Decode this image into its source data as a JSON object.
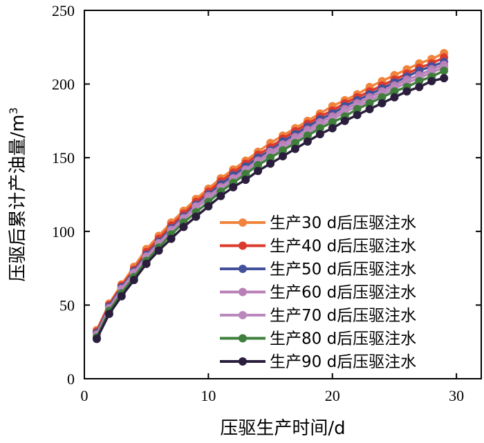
{
  "chart_data": {
    "type": "line",
    "xlabel": "压驱生产时间/d",
    "ylabel_main": "压驱后累计产油量/m",
    "ylabel_sup": "3",
    "xlim": [
      0,
      32
    ],
    "ylim": [
      0,
      250
    ],
    "xticks": [
      0,
      10,
      20,
      30
    ],
    "yticks": [
      0,
      50,
      100,
      150,
      200,
      250
    ],
    "grid": false,
    "legend_position": "lower-right",
    "marker": "circle",
    "x": [
      1,
      2,
      3,
      4,
      5,
      6,
      7,
      8,
      9,
      10,
      11,
      12,
      13,
      14,
      15,
      16,
      17,
      18,
      19,
      20,
      21,
      22,
      23,
      24,
      25,
      26,
      27,
      28,
      29
    ],
    "series": [
      {
        "name": "生产30 d后压驱注水",
        "color": "#f0843c",
        "values": [
          33,
          51,
          64,
          76,
          88,
          97,
          106,
          114,
          122,
          129,
          136,
          142,
          148,
          154,
          160,
          165,
          170,
          175,
          180,
          185,
          189,
          193,
          198,
          202,
          206,
          210,
          214,
          217,
          221
        ]
      },
      {
        "name": "生产40 d后压驱注水",
        "color": "#dc3a2c",
        "values": [
          32,
          50,
          63,
          74,
          86,
          95,
          104,
          112,
          120,
          127,
          134,
          140,
          146,
          152,
          157,
          163,
          168,
          173,
          178,
          182,
          187,
          191,
          195,
          199,
          203,
          207,
          211,
          214,
          218
        ]
      },
      {
        "name": "生产50 d后压驱注水",
        "color": "#43509a",
        "values": [
          31,
          49,
          62,
          73,
          84,
          93,
          102,
          110,
          118,
          125,
          132,
          138,
          144,
          150,
          155,
          161,
          166,
          171,
          176,
          180,
          185,
          189,
          193,
          197,
          201,
          205,
          209,
          212,
          215
        ]
      },
      {
        "name": "生产60 d后压驱注水",
        "color": "#b97fb7",
        "values": [
          30,
          48,
          61,
          72,
          83,
          92,
          101,
          109,
          117,
          124,
          130,
          136,
          142,
          148,
          154,
          159,
          164,
          169,
          174,
          178,
          183,
          187,
          191,
          195,
          199,
          203,
          206,
          210,
          213
        ]
      },
      {
        "name": "生产70 d后压驱注水",
        "color": "#bb88bd",
        "values": [
          29,
          47,
          60,
          71,
          82,
          91,
          100,
          108,
          116,
          122,
          129,
          135,
          141,
          147,
          152,
          157,
          162,
          167,
          172,
          176,
          181,
          185,
          189,
          193,
          197,
          201,
          204,
          208,
          211
        ]
      },
      {
        "name": "生产80 d后压驱注水",
        "color": "#3f7f3b",
        "values": [
          28,
          46,
          58,
          69,
          80,
          89,
          98,
          106,
          113,
          120,
          127,
          133,
          139,
          145,
          150,
          155,
          160,
          165,
          170,
          174,
          178,
          183,
          187,
          191,
          195,
          198,
          202,
          205,
          209
        ]
      },
      {
        "name": "生产90 d后压驱注水",
        "color": "#2a1e3c",
        "values": [
          27,
          44,
          56,
          67,
          78,
          87,
          95,
          103,
          110,
          117,
          124,
          130,
          135,
          141,
          146,
          151,
          156,
          161,
          166,
          170,
          175,
          179,
          183,
          187,
          191,
          195,
          198,
          202,
          204
        ]
      }
    ]
  }
}
